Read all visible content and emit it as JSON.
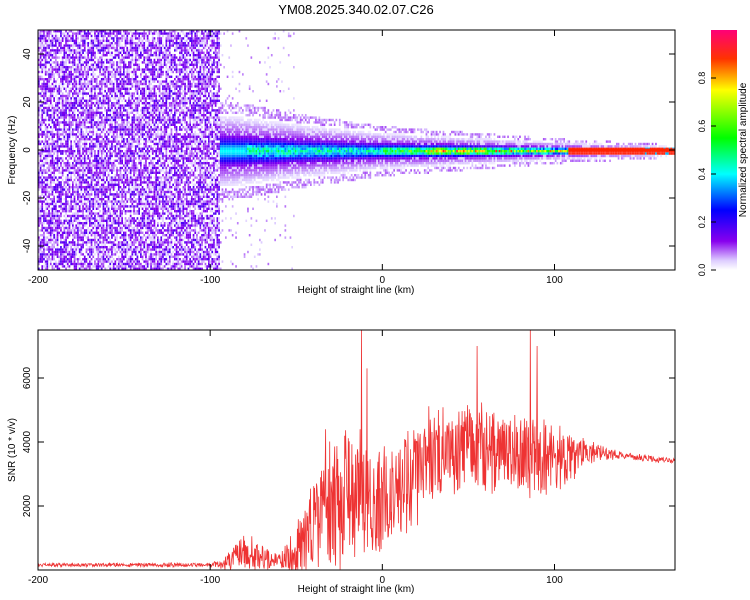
{
  "title": "YM08.2025.340.02.07.C26",
  "chart_data": [
    {
      "type": "heatmap",
      "xlabel": "Height of straight line (km)",
      "ylabel": "Frequency (Hz)",
      "xlim": [
        -200,
        170
      ],
      "ylim": [
        -50,
        50
      ],
      "x_ticks": [
        "-200",
        "-100",
        "0",
        "100"
      ],
      "y_ticks": [
        "-40",
        "-20",
        "0",
        "20",
        "40"
      ],
      "colorbar": {
        "label": "Normalized spectral amplitude",
        "range": [
          0.0,
          1.0
        ],
        "ticks": [
          "0.0",
          "0.2",
          "0.4",
          "0.6",
          "0.8"
        ],
        "colormap": "rainbow (white-purple-blue-cyan-green-yellow-red-magenta)"
      },
      "description_values": {
        "noise_region_x": [
          -200,
          -95
        ],
        "signal_center_frequency_hz": 0,
        "signal_band_halfwidth_hz_at_x": [
          [
            -90,
            16
          ],
          [
            -50,
            12
          ],
          [
            0,
            8
          ],
          [
            50,
            6
          ],
          [
            100,
            4
          ],
          [
            170,
            2
          ]
        ],
        "peak_amplitude_region_x": [
          25,
          170
        ]
      }
    },
    {
      "type": "line",
      "xlabel": "Height of straight line (km)",
      "ylabel": "SNR (10 * v/v)",
      "xlim": [
        -200,
        170
      ],
      "ylim": [
        0,
        7500
      ],
      "x_ticks": [
        "-200",
        "-100",
        "0",
        "100"
      ],
      "y_ticks": [
        "2000",
        "4000",
        "6000"
      ],
      "color": "#ee3333",
      "envelope": {
        "x": [
          -200,
          -100,
          -90,
          -80,
          -70,
          -60,
          -50,
          -40,
          -30,
          -20,
          -10,
          0,
          10,
          20,
          30,
          40,
          50,
          60,
          70,
          80,
          90,
          100,
          110,
          120,
          130,
          140,
          150,
          160,
          170
        ],
        "baseline": [
          150,
          150,
          200,
          400,
          300,
          250,
          400,
          1200,
          1600,
          2000,
          1800,
          2000,
          2400,
          2800,
          3200,
          3500,
          3700,
          3600,
          3500,
          3400,
          3300,
          3300,
          3400,
          3600,
          3600,
          3550,
          3500,
          3450,
          3400
        ],
        "amplitude": [
          100,
          120,
          500,
          1300,
          700,
          400,
          1500,
          3000,
          3500,
          4000,
          4000,
          3200,
          3000,
          3000,
          2800,
          2600,
          2600,
          2600,
          2400,
          2400,
          2400,
          2000,
          1400,
          700,
          350,
          250,
          200,
          180,
          150
        ],
        "peaks": [
          [
            -12,
            7500
          ],
          [
            -9,
            6300
          ],
          [
            55,
            7000
          ],
          [
            86,
            7500
          ],
          [
            90,
            7000
          ],
          [
            -33,
            4400
          ]
        ]
      }
    }
  ]
}
